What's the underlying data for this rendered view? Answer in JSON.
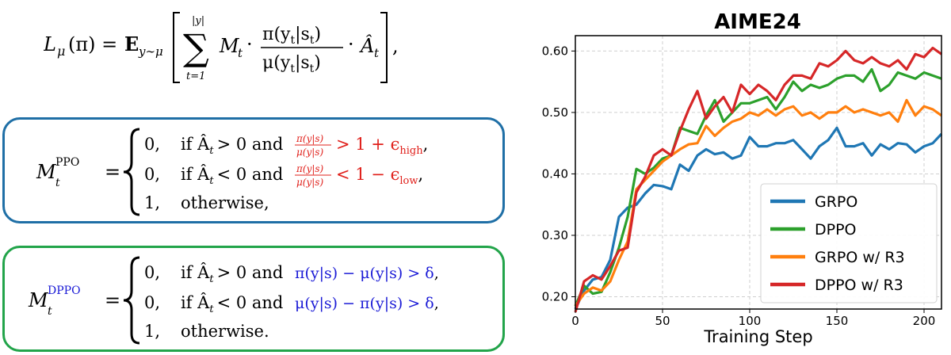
{
  "equations": {
    "main": {
      "lhs_L": "L",
      "lhs_mu": "μ",
      "lhs_arg": "(π) =",
      "E": "E",
      "E_sub": "y∼μ",
      "sum_top": "|y|",
      "sum_symbol": "∑",
      "sum_bottom": "t=1",
      "M": "M",
      "M_sub": "t",
      "dot1": "·",
      "num": "π(y",
      "num_sub": "t",
      "num_end": "|s",
      "num_sub2": "t",
      "num_close": ")",
      "den": "μ(y",
      "den_sub": "t",
      "den_end": "|s",
      "den_sub2": "t",
      "den_close": ")",
      "dot2": "·",
      "A": "Â",
      "A_sub": "t",
      "trail": ","
    },
    "ppo": {
      "M": "M",
      "sup": "PPO",
      "sub": "t",
      "eq": "=",
      "rows": [
        {
          "val": "0,",
          "cond": "if Â",
          "cond_sub": "t",
          "op": "> 0 and",
          "red_frac_num": "π(y|s)",
          "red_frac_den": "μ(y|s)",
          "red_rest": "> 1 + ϵ",
          "red_sub": "high",
          "end": ","
        },
        {
          "val": "0,",
          "cond": "if Â",
          "cond_sub": "t",
          "op": "< 0 and",
          "red_frac_num": "π(y|s)",
          "red_frac_den": "μ(y|s)",
          "red_rest": "< 1 − ϵ",
          "red_sub": "low",
          "end": ","
        },
        {
          "val": "1,",
          "text": "otherwise,"
        }
      ]
    },
    "dppo": {
      "M": "M",
      "sup": "DPPO",
      "sub": "t",
      "eq": "=",
      "rows": [
        {
          "val": "0,",
          "cond": "if Â",
          "cond_sub": "t",
          "op": "> 0 and",
          "blue": "π(y|s) − μ(y|s) > δ",
          "end": ","
        },
        {
          "val": "0,",
          "cond": "if Â",
          "cond_sub": "t",
          "op": "< 0 and",
          "blue": "μ(y|s) − π(y|s) > δ",
          "end": ","
        },
        {
          "val": "1,",
          "text": "otherwise."
        }
      ]
    }
  },
  "colors": {
    "ppo_border": "#1f6fa6",
    "dppo_border": "#22a44a",
    "red_text": "#e0201b",
    "blue_text": "#1a1ad6",
    "grpo": "#1f77b4",
    "dppo": "#2ca02c",
    "grpo_r3": "#ff7f0e",
    "dppo_r3": "#d62728"
  },
  "chart_data": {
    "type": "line",
    "title": "AIME24",
    "xlabel": "Training Step",
    "ylabel": "",
    "xlim": [
      0,
      210
    ],
    "ylim": [
      0.18,
      0.625
    ],
    "xticks": [
      0,
      50,
      100,
      150,
      200
    ],
    "yticks": [
      0.2,
      0.3,
      0.4,
      0.5,
      0.6
    ],
    "ytick_labels": [
      "0.20",
      "0.30",
      "0.40",
      "0.50",
      "0.60"
    ],
    "grid": true,
    "legend_position": "bottom-right",
    "series": [
      {
        "name": "GRPO",
        "color": "#1f77b4",
        "x": [
          0,
          5,
          10,
          15,
          20,
          25,
          30,
          35,
          40,
          45,
          50,
          55,
          60,
          65,
          70,
          75,
          80,
          85,
          90,
          95,
          100,
          105,
          110,
          115,
          120,
          125,
          130,
          135,
          140,
          145,
          150,
          155,
          160,
          165,
          170,
          175,
          180,
          185,
          190,
          195,
          200,
          205,
          210
        ],
        "y": [
          0.18,
          0.21,
          0.228,
          0.232,
          0.26,
          0.33,
          0.345,
          0.35,
          0.368,
          0.382,
          0.38,
          0.375,
          0.415,
          0.405,
          0.43,
          0.44,
          0.432,
          0.435,
          0.425,
          0.43,
          0.46,
          0.445,
          0.445,
          0.45,
          0.45,
          0.455,
          0.44,
          0.425,
          0.445,
          0.455,
          0.475,
          0.445,
          0.445,
          0.45,
          0.43,
          0.448,
          0.44,
          0.45,
          0.448,
          0.435,
          0.445,
          0.45,
          0.465
        ]
      },
      {
        "name": "DPPO",
        "color": "#2ca02c",
        "x": [
          0,
          5,
          10,
          15,
          20,
          25,
          30,
          35,
          40,
          45,
          50,
          55,
          60,
          65,
          70,
          75,
          80,
          85,
          90,
          95,
          100,
          105,
          110,
          115,
          120,
          125,
          130,
          135,
          140,
          145,
          150,
          155,
          160,
          165,
          170,
          175,
          180,
          185,
          190,
          195,
          200,
          205,
          210
        ],
        "y": [
          0.185,
          0.218,
          0.205,
          0.208,
          0.24,
          0.28,
          0.33,
          0.408,
          0.4,
          0.41,
          0.425,
          0.43,
          0.475,
          0.47,
          0.465,
          0.495,
          0.52,
          0.485,
          0.5,
          0.515,
          0.515,
          0.52,
          0.525,
          0.505,
          0.525,
          0.55,
          0.535,
          0.545,
          0.54,
          0.545,
          0.555,
          0.56,
          0.56,
          0.55,
          0.57,
          0.535,
          0.545,
          0.565,
          0.56,
          0.555,
          0.565,
          0.56,
          0.555
        ]
      },
      {
        "name": "GRPO w/ R3",
        "color": "#ff7f0e",
        "x": [
          0,
          5,
          10,
          15,
          20,
          25,
          30,
          35,
          40,
          45,
          50,
          55,
          60,
          65,
          70,
          75,
          80,
          85,
          90,
          95,
          100,
          105,
          110,
          115,
          120,
          125,
          130,
          135,
          140,
          145,
          150,
          155,
          160,
          165,
          170,
          175,
          180,
          185,
          190,
          195,
          200,
          205,
          210
        ],
        "y": [
          0.185,
          0.205,
          0.215,
          0.21,
          0.225,
          0.26,
          0.29,
          0.375,
          0.39,
          0.405,
          0.42,
          0.43,
          0.44,
          0.448,
          0.45,
          0.478,
          0.462,
          0.475,
          0.485,
          0.49,
          0.5,
          0.495,
          0.505,
          0.495,
          0.505,
          0.51,
          0.495,
          0.5,
          0.49,
          0.5,
          0.5,
          0.51,
          0.5,
          0.505,
          0.5,
          0.495,
          0.5,
          0.485,
          0.52,
          0.495,
          0.51,
          0.505,
          0.495
        ]
      },
      {
        "name": "DPPO w/ R3",
        "color": "#d62728",
        "x": [
          0,
          5,
          10,
          15,
          20,
          25,
          30,
          35,
          40,
          45,
          50,
          55,
          60,
          65,
          70,
          75,
          80,
          85,
          90,
          95,
          100,
          105,
          110,
          115,
          120,
          125,
          130,
          135,
          140,
          145,
          150,
          155,
          160,
          165,
          170,
          175,
          180,
          185,
          190,
          195,
          200,
          205,
          210
        ],
        "y": [
          0.175,
          0.225,
          0.235,
          0.228,
          0.25,
          0.275,
          0.28,
          0.37,
          0.395,
          0.43,
          0.44,
          0.43,
          0.47,
          0.505,
          0.535,
          0.49,
          0.51,
          0.525,
          0.5,
          0.545,
          0.53,
          0.545,
          0.535,
          0.52,
          0.545,
          0.56,
          0.56,
          0.555,
          0.58,
          0.575,
          0.585,
          0.6,
          0.585,
          0.58,
          0.59,
          0.58,
          0.575,
          0.585,
          0.57,
          0.595,
          0.59,
          0.605,
          0.595
        ]
      }
    ]
  }
}
